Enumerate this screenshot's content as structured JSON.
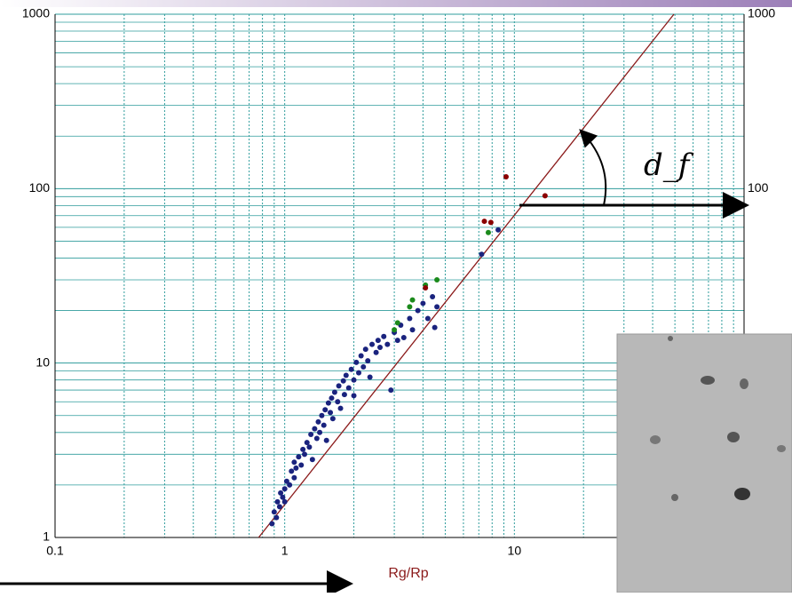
{
  "chart_data": {
    "type": "scatter",
    "x_label": "Rg/Rp",
    "annotation": "d_f",
    "xlim": [
      0.1,
      100
    ],
    "ylim": [
      1,
      1000
    ],
    "xticks": [
      0.1,
      1,
      10
    ],
    "yticks": [
      1,
      10,
      100,
      1000
    ],
    "log_x": true,
    "log_y": true,
    "grid": true,
    "grid_color": "#2f9c9c",
    "fit_line": {
      "x": [
        0.77,
        49.5
      ],
      "y": [
        1,
        1000
      ],
      "color": "#8b1a1a"
    },
    "series": [
      {
        "color": "#1a237e",
        "x": [
          0.88,
          0.9,
          0.92,
          0.93,
          0.95,
          0.96,
          0.98,
          1.0,
          1.0,
          1.02,
          1.05,
          1.07,
          1.1,
          1.1,
          1.12,
          1.15,
          1.18,
          1.2,
          1.22,
          1.25,
          1.28,
          1.3,
          1.32,
          1.35,
          1.38,
          1.4,
          1.42,
          1.45,
          1.48,
          1.5,
          1.52,
          1.55,
          1.58,
          1.6,
          1.62,
          1.65,
          1.7,
          1.72,
          1.75,
          1.8,
          1.82,
          1.85,
          1.9,
          1.95,
          2.0,
          2.0,
          2.05,
          2.1,
          2.15,
          2.2,
          2.25,
          2.3,
          2.35,
          2.4,
          2.5,
          2.55,
          2.6,
          2.7,
          2.8,
          2.9,
          3.0,
          3.1,
          3.2,
          3.3,
          3.5,
          3.6,
          3.8,
          4.0,
          4.2,
          4.4,
          4.5,
          4.6,
          7.2,
          8.5
        ],
        "values": [
          1.2,
          1.4,
          1.3,
          1.6,
          1.5,
          1.8,
          1.7,
          1.9,
          1.6,
          2.1,
          2.0,
          2.4,
          2.2,
          2.7,
          2.5,
          2.9,
          2.6,
          3.2,
          3.0,
          3.5,
          3.3,
          3.9,
          2.8,
          4.2,
          3.7,
          4.6,
          4.0,
          5.0,
          4.4,
          5.4,
          3.6,
          5.9,
          5.2,
          6.3,
          4.8,
          6.8,
          6.0,
          7.4,
          5.5,
          7.9,
          6.6,
          8.5,
          7.2,
          9.2,
          8.0,
          6.5,
          10.1,
          8.8,
          11.0,
          9.5,
          12.0,
          10.3,
          8.3,
          12.8,
          11.5,
          13.5,
          12.3,
          14.2,
          12.8,
          7.0,
          15.0,
          13.5,
          16.5,
          14.0,
          18.0,
          15.5,
          20.0,
          22.0,
          18.0,
          24.0,
          16.0,
          21.0,
          42,
          58
        ]
      },
      {
        "color": "#1b8a1b",
        "x": [
          3.0,
          3.1,
          3.5,
          3.6,
          4.1,
          4.6,
          7.7
        ],
        "values": [
          15.5,
          17,
          21,
          23,
          28,
          30,
          56
        ]
      },
      {
        "color": "#8b0000",
        "x": [
          4.1,
          7.4,
          7.9,
          9.2,
          13.6
        ],
        "values": [
          27,
          65,
          64,
          117,
          91
        ]
      }
    ]
  }
}
